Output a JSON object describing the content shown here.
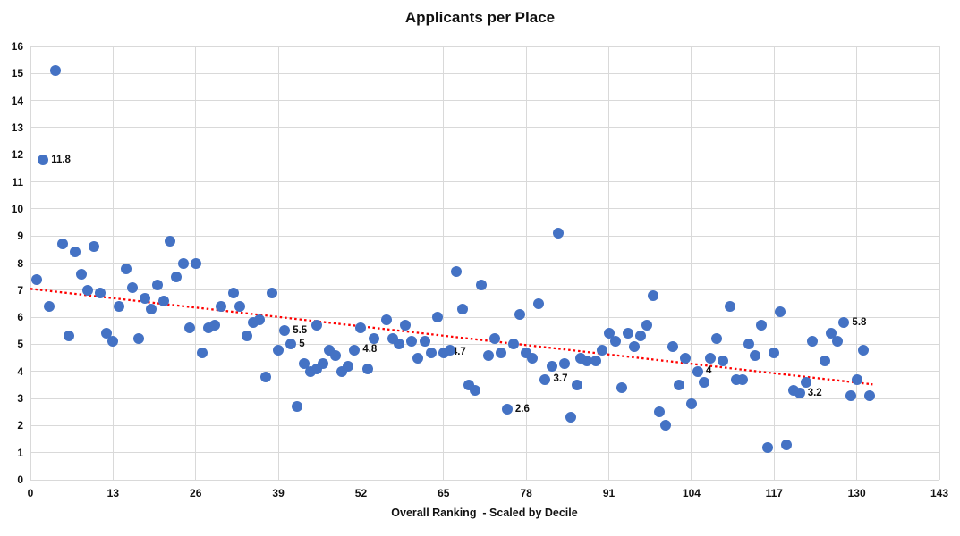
{
  "title": "Applicants per Place",
  "chart_data": {
    "type": "scatter",
    "title": "Applicants per Place",
    "xlabel": "Overall Ranking  - Scaled by Decile",
    "ylabel": "",
    "xlim": [
      0,
      143
    ],
    "ylim": [
      0,
      16
    ],
    "x_ticks": [
      0,
      13,
      26,
      39,
      52,
      65,
      78,
      91,
      104,
      117,
      130,
      143
    ],
    "y_ticks": [
      0,
      1,
      2,
      3,
      4,
      5,
      6,
      7,
      8,
      9,
      10,
      11,
      12,
      13,
      14,
      15,
      16
    ],
    "grid": true,
    "legend": false,
    "point_color": "#4472C4",
    "gridline_color": "#d9d9d9",
    "trendline": {
      "color": "#ff0000",
      "style": "dotted",
      "x_start": 0,
      "y_start": 7.05,
      "x_end": 132.5,
      "y_end": 3.52
    },
    "points": [
      {
        "x": 1,
        "y": 7.4
      },
      {
        "x": 2,
        "y": 11.8,
        "label": "11.8"
      },
      {
        "x": 3,
        "y": 6.4
      },
      {
        "x": 4,
        "y": 15.1
      },
      {
        "x": 5,
        "y": 8.7
      },
      {
        "x": 6,
        "y": 5.3
      },
      {
        "x": 7,
        "y": 8.4
      },
      {
        "x": 8,
        "y": 7.6
      },
      {
        "x": 9,
        "y": 7.0
      },
      {
        "x": 10,
        "y": 8.6
      },
      {
        "x": 11,
        "y": 6.9
      },
      {
        "x": 12,
        "y": 5.4
      },
      {
        "x": 13,
        "y": 5.1
      },
      {
        "x": 14,
        "y": 6.4
      },
      {
        "x": 15,
        "y": 7.8
      },
      {
        "x": 16,
        "y": 7.1
      },
      {
        "x": 17,
        "y": 5.2
      },
      {
        "x": 18,
        "y": 6.7
      },
      {
        "x": 19,
        "y": 6.3
      },
      {
        "x": 20,
        "y": 7.2
      },
      {
        "x": 21,
        "y": 6.6
      },
      {
        "x": 22,
        "y": 8.8
      },
      {
        "x": 23,
        "y": 7.5
      },
      {
        "x": 24,
        "y": 8.0
      },
      {
        "x": 25,
        "y": 5.6
      },
      {
        "x": 26,
        "y": 8.0
      },
      {
        "x": 27,
        "y": 4.7
      },
      {
        "x": 28,
        "y": 5.6
      },
      {
        "x": 29,
        "y": 5.7
      },
      {
        "x": 30,
        "y": 6.4
      },
      {
        "x": 32,
        "y": 6.9
      },
      {
        "x": 33,
        "y": 6.4
      },
      {
        "x": 34,
        "y": 5.3
      },
      {
        "x": 35,
        "y": 5.8
      },
      {
        "x": 36,
        "y": 5.9
      },
      {
        "x": 37,
        "y": 3.8
      },
      {
        "x": 38,
        "y": 6.9
      },
      {
        "x": 39,
        "y": 4.8
      },
      {
        "x": 40,
        "y": 5.5,
        "label": "5.5"
      },
      {
        "x": 41,
        "y": 5.0,
        "label": "5"
      },
      {
        "x": 42,
        "y": 2.7
      },
      {
        "x": 43,
        "y": 4.3
      },
      {
        "x": 44,
        "y": 4.0
      },
      {
        "x": 45,
        "y": 5.7
      },
      {
        "x": 45,
        "y": 4.1
      },
      {
        "x": 46,
        "y": 4.3
      },
      {
        "x": 47,
        "y": 4.8
      },
      {
        "x": 48,
        "y": 4.6
      },
      {
        "x": 49,
        "y": 4.0
      },
      {
        "x": 50,
        "y": 4.2
      },
      {
        "x": 51,
        "y": 4.8,
        "label": "4.8"
      },
      {
        "x": 52,
        "y": 5.6
      },
      {
        "x": 53,
        "y": 4.1
      },
      {
        "x": 54,
        "y": 5.2
      },
      {
        "x": 56,
        "y": 5.9
      },
      {
        "x": 57,
        "y": 5.2
      },
      {
        "x": 58,
        "y": 5.0
      },
      {
        "x": 59,
        "y": 5.7
      },
      {
        "x": 60,
        "y": 5.1
      },
      {
        "x": 61,
        "y": 4.5
      },
      {
        "x": 62,
        "y": 5.1
      },
      {
        "x": 63,
        "y": 4.7
      },
      {
        "x": 64,
        "y": 6.0
      },
      {
        "x": 65,
        "y": 4.7,
        "label": "4.7"
      },
      {
        "x": 66,
        "y": 4.8
      },
      {
        "x": 67,
        "y": 7.7
      },
      {
        "x": 68,
        "y": 6.3
      },
      {
        "x": 69,
        "y": 3.5
      },
      {
        "x": 70,
        "y": 3.3
      },
      {
        "x": 71,
        "y": 7.2
      },
      {
        "x": 72,
        "y": 4.6
      },
      {
        "x": 73,
        "y": 5.2
      },
      {
        "x": 74,
        "y": 4.7
      },
      {
        "x": 75,
        "y": 2.6,
        "label": "2.6"
      },
      {
        "x": 76,
        "y": 5.0
      },
      {
        "x": 77,
        "y": 6.1
      },
      {
        "x": 78,
        "y": 4.7
      },
      {
        "x": 79,
        "y": 4.5
      },
      {
        "x": 80,
        "y": 6.5
      },
      {
        "x": 81,
        "y": 3.7,
        "label": "3.7"
      },
      {
        "x": 82,
        "y": 4.2
      },
      {
        "x": 83,
        "y": 9.1
      },
      {
        "x": 84,
        "y": 4.3
      },
      {
        "x": 85,
        "y": 2.3
      },
      {
        "x": 86,
        "y": 3.5
      },
      {
        "x": 86.5,
        "y": 4.5
      },
      {
        "x": 87.5,
        "y": 4.4
      },
      {
        "x": 89,
        "y": 4.4
      },
      {
        "x": 90,
        "y": 4.8
      },
      {
        "x": 91,
        "y": 5.4
      },
      {
        "x": 92,
        "y": 5.1
      },
      {
        "x": 93,
        "y": 3.4
      },
      {
        "x": 94,
        "y": 5.4
      },
      {
        "x": 95,
        "y": 4.9
      },
      {
        "x": 96,
        "y": 5.3
      },
      {
        "x": 97,
        "y": 5.7
      },
      {
        "x": 98,
        "y": 6.8
      },
      {
        "x": 99,
        "y": 2.5
      },
      {
        "x": 100,
        "y": 2.0
      },
      {
        "x": 101,
        "y": 4.9
      },
      {
        "x": 102,
        "y": 3.5
      },
      {
        "x": 103,
        "y": 4.5
      },
      {
        "x": 104,
        "y": 2.8
      },
      {
        "x": 105,
        "y": 4.0,
        "label": "4"
      },
      {
        "x": 106,
        "y": 3.6
      },
      {
        "x": 107,
        "y": 4.5
      },
      {
        "x": 108,
        "y": 5.2
      },
      {
        "x": 109,
        "y": 4.4
      },
      {
        "x": 110,
        "y": 6.4
      },
      {
        "x": 111,
        "y": 3.7
      },
      {
        "x": 112,
        "y": 3.7
      },
      {
        "x": 113,
        "y": 5.0
      },
      {
        "x": 114,
        "y": 4.6
      },
      {
        "x": 115,
        "y": 5.7
      },
      {
        "x": 116,
        "y": 1.2
      },
      {
        "x": 117,
        "y": 4.7
      },
      {
        "x": 118,
        "y": 6.2
      },
      {
        "x": 119,
        "y": 1.3
      },
      {
        "x": 120,
        "y": 3.3
      },
      {
        "x": 121,
        "y": 3.2,
        "label": "3.2"
      },
      {
        "x": 122,
        "y": 3.6
      },
      {
        "x": 123,
        "y": 5.1
      },
      {
        "x": 125,
        "y": 4.4
      },
      {
        "x": 126,
        "y": 5.4
      },
      {
        "x": 127,
        "y": 5.1
      },
      {
        "x": 128,
        "y": 5.8,
        "label": "5.8"
      },
      {
        "x": 129,
        "y": 3.1
      },
      {
        "x": 130,
        "y": 3.7
      },
      {
        "x": 131,
        "y": 4.8
      },
      {
        "x": 132,
        "y": 3.1
      }
    ]
  }
}
